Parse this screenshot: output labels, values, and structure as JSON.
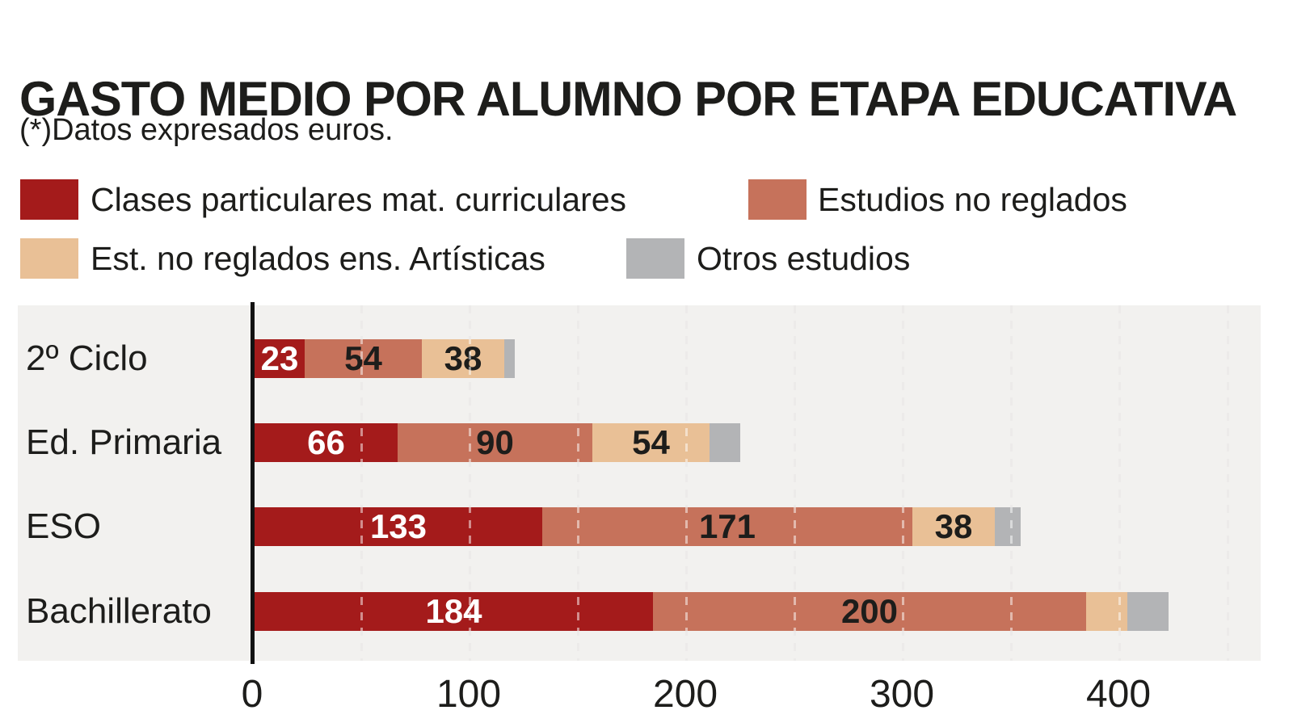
{
  "title": "GASTO MEDIO POR ALUMNO POR ETAPA EDUCATIVA",
  "subtitle": "(*)Datos expresados euros.",
  "legend": {
    "items": [
      {
        "label": "Clases particulares mat. curriculares",
        "color": "#a41b1b"
      },
      {
        "label": "Estudios no reglados",
        "color": "#c6725b"
      },
      {
        "label": "Est. no reglados ens. Artísticas",
        "color": "#e9c096"
      },
      {
        "label": "Otros estudios",
        "color": "#b3b4b6"
      }
    ]
  },
  "chart_data": {
    "type": "bar",
    "variant": "horizontal-stacked",
    "title": "GASTO MEDIO POR ALUMNO POR ETAPA EDUCATIVA",
    "subtitle": "(*)Datos expresados euros.",
    "unit": "euros",
    "categories": [
      "2º Ciclo",
      "Ed. Primaria",
      "ESO",
      "Bachillerato"
    ],
    "series": [
      {
        "name": "Clases particulares mat. curriculares",
        "color": "#a41b1b",
        "values": [
          23,
          66,
          133,
          184
        ],
        "labels": [
          "23",
          "66",
          "133",
          "184"
        ],
        "label_color": "#ffffff"
      },
      {
        "name": "Estudios no reglados",
        "color": "#c6725b",
        "values": [
          54,
          90,
          171,
          200
        ],
        "labels": [
          "54",
          "90",
          "171",
          "200"
        ],
        "label_color": "#1d1d1b"
      },
      {
        "name": "Est. no reglados ens. Artísticas",
        "color": "#e9c096",
        "values": [
          38,
          54,
          38,
          19
        ],
        "labels": [
          "38",
          "54",
          "38",
          ""
        ],
        "label_color": "#1d1d1b"
      },
      {
        "name": "Otros estudios",
        "color": "#b3b4b6",
        "values": [
          5,
          14,
          12,
          19
        ],
        "labels": [
          "",
          "",
          "",
          ""
        ],
        "label_color": "#1d1d1b"
      }
    ],
    "x_ticks": [
      {
        "label": "0",
        "value": 0
      },
      {
        "label": "100",
        "value": 100
      },
      {
        "label": "200",
        "value": 200
      },
      {
        "label": "300",
        "value": 300
      },
      {
        "label": "400",
        "value": 400
      }
    ],
    "xlim": [
      0,
      465
    ],
    "gridline_step": 50,
    "grid_style": "dashed",
    "legend_position": "top",
    "plot_background": "#f2f1ef",
    "axis_color": "#121212"
  }
}
